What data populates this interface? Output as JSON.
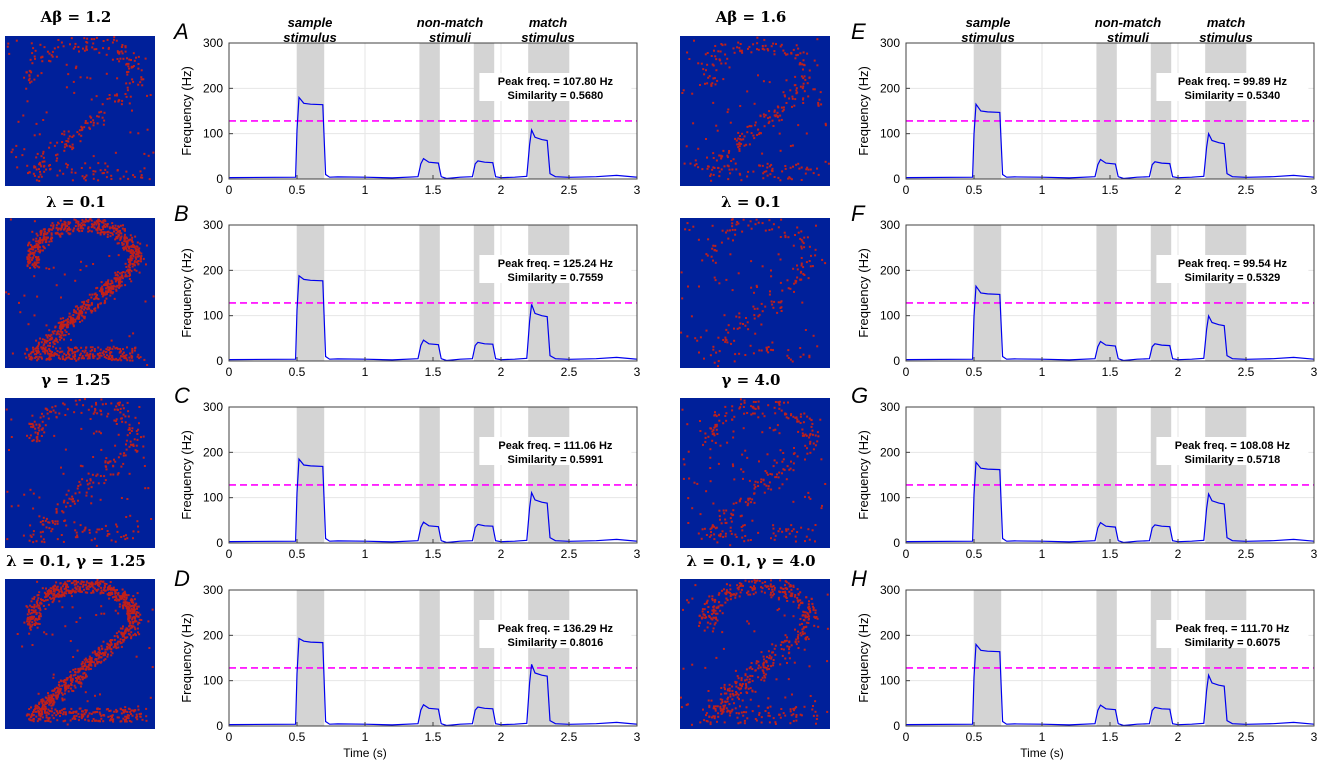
{
  "colors": {
    "spike_bg": "#00209a",
    "spike_dot": "#c0201a",
    "line": "#0000ee",
    "threshold": "#ff00ff",
    "shade": "#d4d4d4",
    "grid": "#e6e6e6",
    "axis": "#404040"
  },
  "header_labels": {
    "sample": [
      "sample",
      "stimulus"
    ],
    "nonmatch": [
      "non-match",
      "stimuli"
    ],
    "match": [
      "match",
      "stimulus"
    ]
  },
  "images": [
    {
      "title": "Aβ = 1.2",
      "pattern": "faint"
    },
    {
      "title": "λ = 0.1",
      "pattern": "dense"
    },
    {
      "title": "γ = 1.25",
      "pattern": "faint"
    },
    {
      "title": "λ = 0.1, γ = 1.25",
      "pattern": "dense"
    },
    {
      "title": "Aβ = 1.6",
      "pattern": "faint"
    },
    {
      "title": "λ = 0.1",
      "pattern": "sparse"
    },
    {
      "title": "γ = 4.0",
      "pattern": "faint"
    },
    {
      "title": "λ = 0.1, γ = 4.0",
      "pattern": "medium"
    }
  ],
  "chart_data": [
    {
      "panel": "A",
      "type": "line",
      "peak_label": "Peak freq. = 107.80 Hz",
      "similarity_label": "Similarity = 0.5680",
      "sample_peak": 180,
      "sample_plateau": 165,
      "match_peak": 108,
      "match_plateau": 87,
      "nonmatch_level": 37
    },
    {
      "panel": "B",
      "type": "line",
      "peak_label": "Peak freq. = 125.24 Hz",
      "similarity_label": "Similarity = 0.7559",
      "sample_peak": 188,
      "sample_plateau": 178,
      "match_peak": 125,
      "match_plateau": 100,
      "nonmatch_level": 38
    },
    {
      "panel": "C",
      "type": "line",
      "peak_label": "Peak freq. = 111.06 Hz",
      "similarity_label": "Similarity = 0.5991",
      "sample_peak": 185,
      "sample_plateau": 170,
      "match_peak": 111,
      "match_plateau": 90,
      "nonmatch_level": 38
    },
    {
      "panel": "D",
      "type": "line",
      "peak_label": "Peak freq. = 136.29 Hz",
      "similarity_label": "Similarity = 0.8016",
      "sample_peak": 193,
      "sample_plateau": 185,
      "match_peak": 136,
      "match_plateau": 112,
      "nonmatch_level": 39
    },
    {
      "panel": "E",
      "type": "line",
      "peak_label": "Peak freq. = 99.89 Hz",
      "similarity_label": "Similarity = 0.5340",
      "sample_peak": 165,
      "sample_plateau": 148,
      "match_peak": 100,
      "match_plateau": 80,
      "nonmatch_level": 35
    },
    {
      "panel": "F",
      "type": "line",
      "peak_label": "Peak freq. = 99.54 Hz",
      "similarity_label": "Similarity = 0.5329",
      "sample_peak": 165,
      "sample_plateau": 148,
      "match_peak": 99.5,
      "match_plateau": 80,
      "nonmatch_level": 35
    },
    {
      "panel": "G",
      "type": "line",
      "peak_label": "Peak freq. = 108.08 Hz",
      "similarity_label": "Similarity = 0.5718",
      "sample_peak": 178,
      "sample_plateau": 163,
      "match_peak": 108,
      "match_plateau": 88,
      "nonmatch_level": 37
    },
    {
      "panel": "H",
      "type": "line",
      "peak_label": "Peak freq. = 111.70 Hz",
      "similarity_label": "Similarity = 0.6075",
      "sample_peak": 180,
      "sample_plateau": 165,
      "match_peak": 112,
      "match_plateau": 90,
      "nonmatch_level": 38
    }
  ],
  "shared_axes": {
    "ylabel": "Frequency (Hz)",
    "xlabel": "Time (s)",
    "xlim": [
      0,
      3
    ],
    "ylim": [
      0,
      300
    ],
    "xticks": [
      0,
      0.5,
      1,
      1.5,
      2,
      2.5,
      3
    ],
    "xtick_labels": [
      "0",
      "0.5",
      "1",
      "1.5",
      "2",
      "2.5",
      "3"
    ],
    "yticks": [
      0,
      100,
      200,
      300
    ],
    "ytick_labels": [
      "0",
      "100",
      "200",
      "300"
    ],
    "threshold": 128,
    "stimulus_windows": [
      [
        0.5,
        0.7
      ],
      [
        1.4,
        1.55
      ],
      [
        1.8,
        1.95
      ],
      [
        2.2,
        2.5
      ]
    ]
  }
}
